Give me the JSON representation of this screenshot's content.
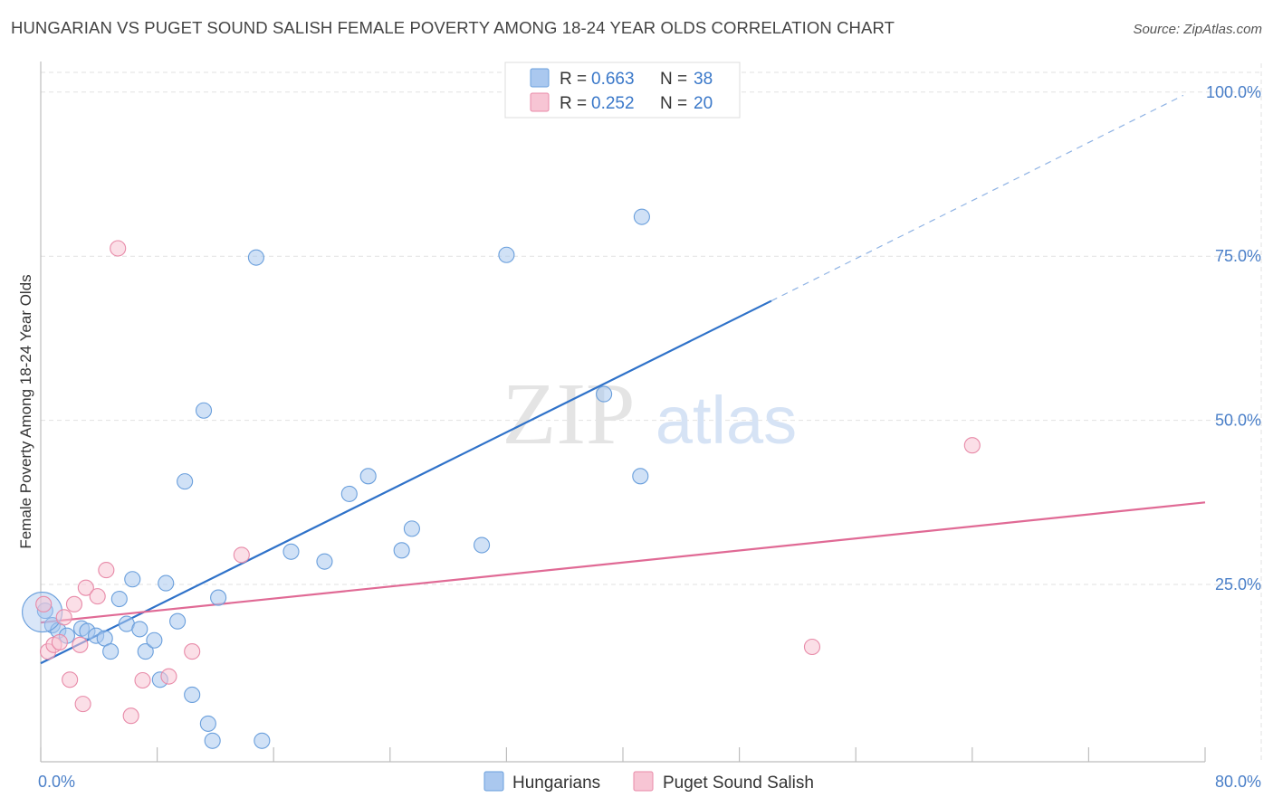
{
  "title": "HUNGARIAN VS PUGET SOUND SALISH FEMALE POVERTY AMONG 18-24 YEAR OLDS CORRELATION CHART",
  "source": "Source: ZipAtlas.com",
  "watermark": {
    "zip": "ZIP",
    "atlas": "atlas"
  },
  "legend_top": [
    {
      "r_label": "R =",
      "r_value": "0.663",
      "n_label": "N =",
      "n_value": "38",
      "color": "#aac8ef",
      "stroke": "#6a9fdc"
    },
    {
      "r_label": "R =",
      "r_value": "0.252",
      "n_label": "N =",
      "n_value": "20",
      "color": "#f7c5d4",
      "stroke": "#e88aa8"
    }
  ],
  "chart_data": {
    "type": "scatter",
    "xlabel": "",
    "ylabel": "Female Poverty Among 18-24 Year Olds",
    "xlim": [
      0,
      80
    ],
    "ylim": [
      -2,
      103
    ],
    "x_ticks": [
      {
        "value": 0,
        "label": "0.0%"
      },
      {
        "value": 80,
        "label": "80.0%"
      }
    ],
    "x_minor_ticks": [
      0,
      8,
      16,
      24,
      32,
      40,
      48,
      56,
      64,
      72,
      80
    ],
    "y_ticks": [
      {
        "value": 25,
        "label": "25.0%"
      },
      {
        "value": 50,
        "label": "50.0%"
      },
      {
        "value": 75,
        "label": "75.0%"
      },
      {
        "value": 100,
        "label": "100.0%"
      }
    ],
    "grid": true,
    "legend_position": "bottom",
    "series": [
      {
        "name": "Hungarians",
        "color": "#aac8ef",
        "stroke": "#6a9fdc",
        "line_color": "#2f72c9",
        "trend": {
          "x0": 0,
          "y0": 13.0,
          "x1": 50.2,
          "y1": 68.2,
          "dash_x1": 78.5,
          "dash_y1": 99.5
        },
        "points": [
          [
            0.3,
            21.0
          ],
          [
            0.8,
            18.8
          ],
          [
            1.2,
            18.0
          ],
          [
            1.8,
            17.2
          ],
          [
            2.8,
            18.3
          ],
          [
            3.2,
            17.9
          ],
          [
            3.8,
            17.2
          ],
          [
            4.4,
            16.8
          ],
          [
            4.8,
            14.8
          ],
          [
            5.4,
            22.8
          ],
          [
            5.9,
            19.0
          ],
          [
            6.3,
            25.8
          ],
          [
            6.8,
            18.2
          ],
          [
            7.2,
            14.8
          ],
          [
            7.8,
            16.5
          ],
          [
            8.2,
            10.5
          ],
          [
            8.6,
            25.2
          ],
          [
            9.4,
            19.4
          ],
          [
            9.9,
            40.7
          ],
          [
            10.4,
            8.2
          ],
          [
            11.2,
            51.5
          ],
          [
            11.5,
            3.8
          ],
          [
            11.8,
            1.2
          ],
          [
            12.2,
            23.0
          ],
          [
            14.8,
            74.8
          ],
          [
            15.2,
            1.2
          ],
          [
            17.2,
            30.0
          ],
          [
            19.5,
            28.5
          ],
          [
            21.2,
            38.8
          ],
          [
            22.5,
            41.5
          ],
          [
            24.8,
            30.2
          ],
          [
            25.5,
            33.5
          ],
          [
            30.3,
            31.0
          ],
          [
            32.0,
            75.2
          ],
          [
            38.7,
            54.0
          ],
          [
            41.2,
            41.5
          ],
          [
            41.3,
            81.0
          ],
          [
            0.1,
            20.8
          ]
        ]
      },
      {
        "name": "Puget Sound Salish",
        "color": "#f7c5d4",
        "stroke": "#e88aa8",
        "line_color": "#e06a95",
        "trend": {
          "x0": 0,
          "y0": 19.2,
          "x1": 80,
          "y1": 37.5
        },
        "points": [
          [
            0.2,
            22.0
          ],
          [
            0.5,
            14.8
          ],
          [
            0.9,
            15.8
          ],
          [
            1.3,
            16.2
          ],
          [
            1.6,
            20.0
          ],
          [
            2.0,
            10.5
          ],
          [
            2.3,
            22.0
          ],
          [
            2.7,
            15.8
          ],
          [
            2.9,
            6.8
          ],
          [
            3.1,
            24.5
          ],
          [
            3.9,
            23.2
          ],
          [
            4.5,
            27.2
          ],
          [
            5.3,
            76.2
          ],
          [
            6.2,
            5.0
          ],
          [
            7.0,
            10.4
          ],
          [
            8.8,
            11.0
          ],
          [
            10.4,
            14.8
          ],
          [
            13.8,
            29.5
          ],
          [
            53.0,
            15.5
          ],
          [
            64.0,
            46.2
          ]
        ]
      }
    ]
  }
}
